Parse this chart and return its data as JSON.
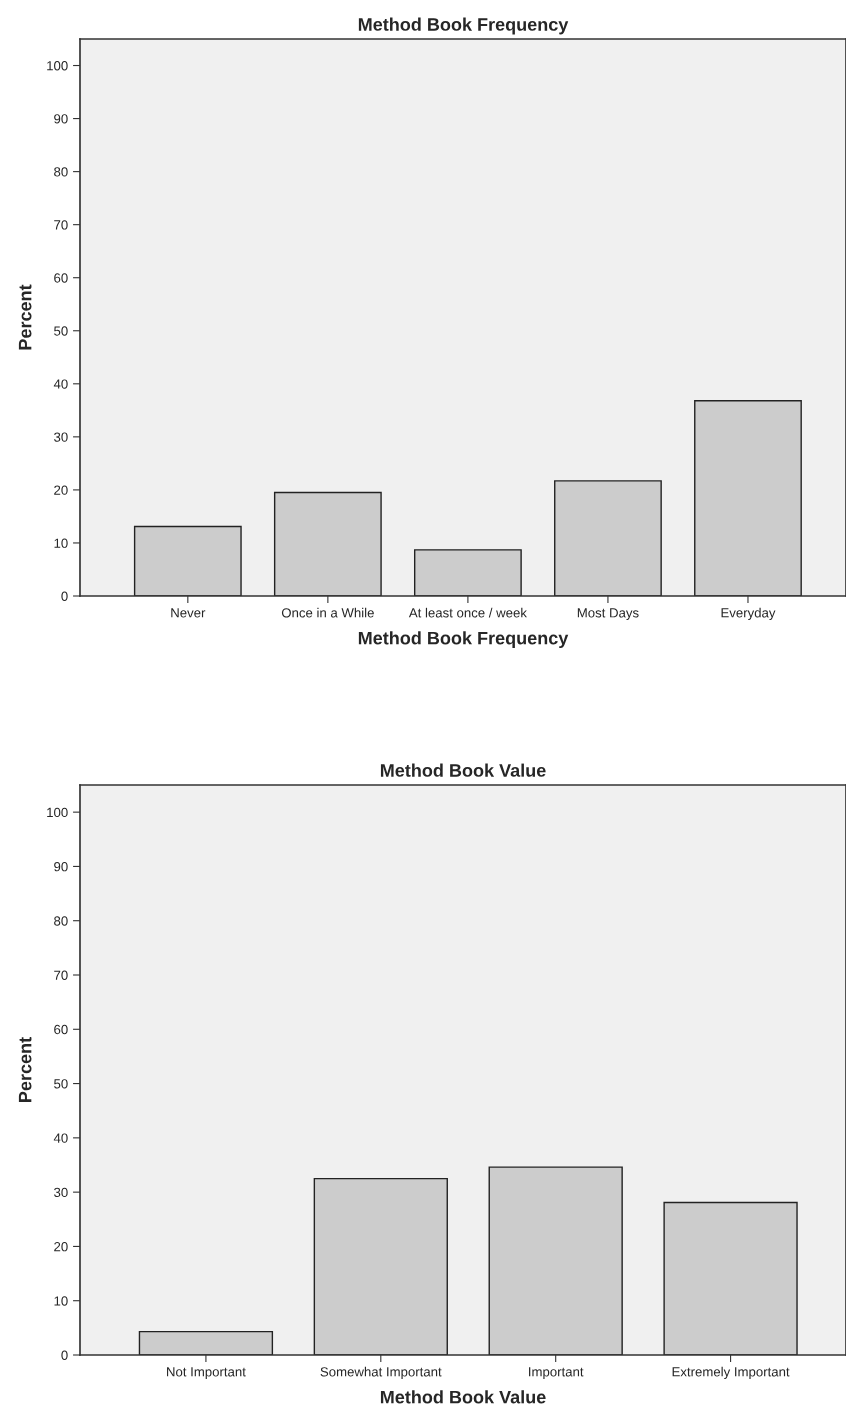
{
  "chart_data": [
    {
      "type": "bar",
      "title": "Method Book Frequency",
      "xlabel": "Method Book Frequency",
      "ylabel": "Percent",
      "categories": [
        "Never",
        "Once in a While",
        "At least once / week",
        "Most Days",
        "Everyday"
      ],
      "values": [
        13.1,
        19.5,
        8.7,
        21.7,
        36.8
      ],
      "color": "#cccccc",
      "ylim": [
        0,
        105
      ],
      "yticks": [
        0,
        10,
        20,
        30,
        40,
        50,
        60,
        70,
        80,
        90,
        100
      ],
      "grid": false
    },
    {
      "type": "bar",
      "title": "Method Book Value",
      "xlabel": "Method Book Value",
      "ylabel": "Percent",
      "categories": [
        "Not Important",
        "Somewhat Important",
        "Important",
        "Extremely Important"
      ],
      "values": [
        4.3,
        32.5,
        34.6,
        28.1
      ],
      "color": "#cccccc",
      "ylim": [
        0,
        105
      ],
      "yticks": [
        0,
        10,
        20,
        30,
        40,
        50,
        60,
        70,
        80,
        90,
        100
      ],
      "grid": false
    }
  ]
}
